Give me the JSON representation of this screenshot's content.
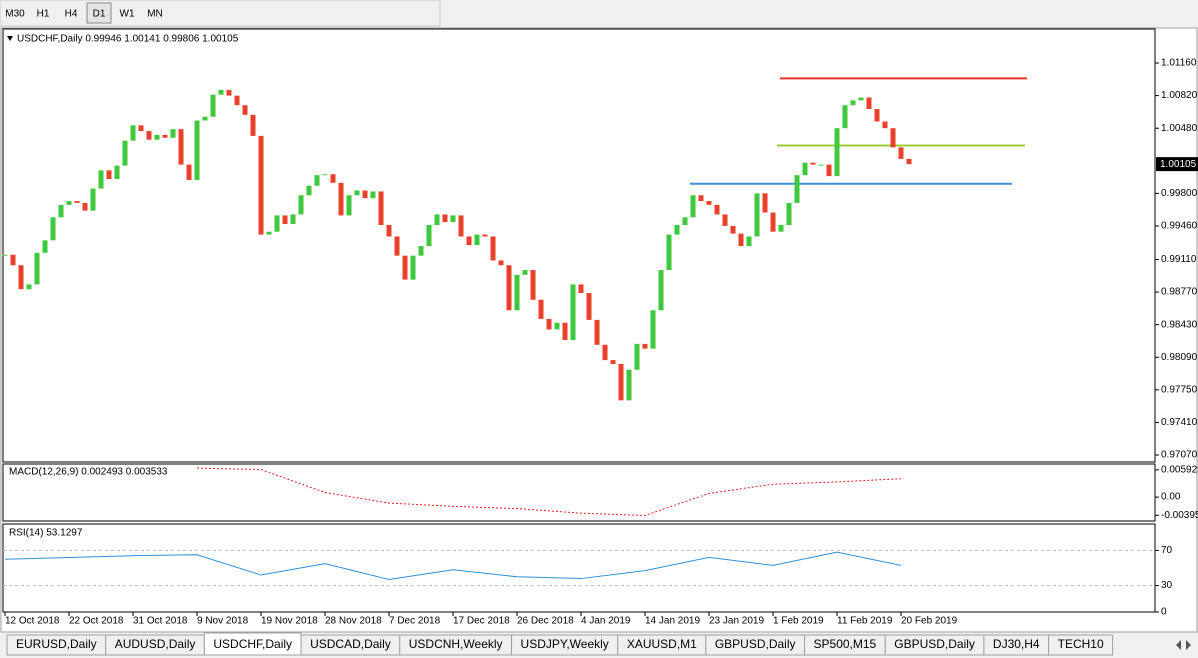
{
  "toolbar": {
    "buttons": [
      "M30",
      "H1",
      "H4",
      "D1",
      "W1",
      "MN"
    ],
    "active": 3
  },
  "chart_data": [
    {
      "type": "candlestick",
      "title": "USDCHF,Daily  0.99946 1.00141 0.99806 1.00105",
      "categories": [
        "12 Oct 2018",
        null,
        null,
        null,
        null,
        null,
        null,
        null,
        "22 Oct 2018",
        null,
        null,
        null,
        null,
        null,
        null,
        null,
        "31 Oct 2018",
        null,
        null,
        null,
        null,
        null,
        null,
        null,
        "9 Nov 2018",
        null,
        null,
        null,
        null,
        null,
        null,
        null,
        "19 Nov 2018",
        null,
        null,
        null,
        null,
        null,
        null,
        null,
        "28 Nov 2018",
        null,
        null,
        null,
        null,
        null,
        null,
        null,
        "7 Dec 2018",
        null,
        null,
        null,
        null,
        null,
        null,
        null,
        "17 Dec 2018",
        null,
        null,
        null,
        null,
        null,
        null,
        null,
        "26 Dec 2018",
        null,
        null,
        null,
        null,
        null,
        null,
        null,
        "4 Jan 2019",
        null,
        null,
        null,
        null,
        null,
        null,
        null,
        "14 Jan 2019",
        null,
        null,
        null,
        null,
        null,
        null,
        null,
        "23 Jan 2019",
        null,
        null,
        null,
        null,
        null,
        null,
        null,
        "1 Feb 2019",
        null,
        null,
        null,
        null,
        null,
        null,
        null,
        "11 Feb 2019",
        null,
        null,
        null,
        null,
        null,
        null,
        null,
        "20 Feb 2019",
        null
      ],
      "values": [
        0.9916,
        0.9905,
        0.988,
        0.9885,
        0.9918,
        0.9931,
        0.9955,
        0.9968,
        0.9972,
        0.997,
        0.9962,
        0.9985,
        1.0004,
        0.9995,
        1.0009,
        1.0035,
        1.0051,
        1.0045,
        1.0036,
        1.0041,
        1.0038,
        1.0047,
        1.001,
        0.9994,
        1.0056,
        1.006,
        1.0083,
        1.0088,
        1.0082,
        1.0072,
        1.0062,
        1.004,
        0.9937,
        0.994,
        0.9957,
        0.9948,
        0.9958,
        0.9978,
        0.9988,
        0.9999,
        1.0,
        0.9991,
        0.9957,
        0.9978,
        0.9983,
        0.9975,
        0.9982,
        0.9947,
        0.9935,
        0.9915,
        0.989,
        0.9915,
        0.9925,
        0.9947,
        0.9958,
        0.995,
        0.9957,
        0.9935,
        0.9926,
        0.9937,
        0.9935,
        0.991,
        0.9905,
        0.9858,
        0.9895,
        0.99,
        0.9869,
        0.9849,
        0.9838,
        0.9845,
        0.9827,
        0.9885,
        0.9876,
        0.9848,
        0.9822,
        0.9806,
        0.9802,
        0.9764,
        0.9796,
        0.9823,
        0.9818,
        0.9858,
        0.99,
        0.9937,
        0.9947,
        0.9955,
        0.9978,
        0.9972,
        0.9968,
        0.9958,
        0.9946,
        0.9938,
        0.9925,
        0.9935,
        0.998,
        0.996,
        0.994,
        0.9947,
        0.997,
        0.9999,
        1.0012,
        1.001,
        1.001,
        0.9998,
        1.0048,
        1.0072,
        1.0077,
        1.008,
        1.0068,
        1.0055,
        1.0048,
        1.0028,
        1.0016,
        1.00105
      ],
      "up_color": "#3ec83e",
      "down_color": "#e8402a",
      "ylim": [
        0.96997,
        1.01515
      ],
      "yticks": [
        {
          "value": 1.0116,
          "label": "1.01160"
        },
        {
          "value": 1.0082,
          "label": "1.00820"
        },
        {
          "value": 1.0048,
          "label": "1.00480"
        },
        {
          "value": 0.998,
          "label": "0.99800"
        },
        {
          "value": 0.9946,
          "label": "0.99460"
        },
        {
          "value": 0.9911,
          "label": "0.99110"
        },
        {
          "value": 0.9877,
          "label": "0.98770"
        },
        {
          "value": 0.9843,
          "label": "0.98430"
        },
        {
          "value": 0.9809,
          "label": "0.98090"
        },
        {
          "value": 0.9775,
          "label": "0.97750"
        },
        {
          "value": 0.9741,
          "label": "0.97410"
        },
        {
          "value": 0.9707,
          "label": "0.97070"
        }
      ],
      "last_price": {
        "value": 1.00105,
        "label": "1.00105"
      },
      "levels": [
        {
          "value": 1.01,
          "color": "#e8302a"
        },
        {
          "value": 1.003,
          "color": "#9acd32"
        },
        {
          "value": 0.999,
          "color": "#3d8fd8"
        }
      ]
    },
    {
      "type": "line",
      "title": "MACD(12,26,9) 0.002493 0.003533",
      "color": "#d42020",
      "dashed": true,
      "values": [
        null,
        null,
        null,
        0.0063,
        0.006,
        0.001,
        -0.0013,
        -0.002,
        -0.0025,
        -0.0035,
        -0.004,
        0.0008,
        0.0028,
        0.0033,
        0.004
      ],
      "ylim": [
        -0.0052,
        0.0072
      ],
      "yticks": [
        0.005925,
        {
          "value": 0,
          "label": "0.00"
        },
        -0.003951
      ]
    },
    {
      "type": "line",
      "title": "RSI(14) 53.1297",
      "color": "#2f8fd8",
      "dashed": false,
      "values": [
        60,
        62,
        64,
        65,
        42,
        55,
        37,
        48,
        40,
        38,
        47,
        62,
        53,
        68,
        53
      ],
      "ylim": [
        0,
        100
      ],
      "yticks": [
        0,
        30,
        70
      ]
    }
  ],
  "tabs": [
    "EURUSD,Daily",
    "AUDUSD,Daily",
    "USDCHF,Daily",
    "USDCAD,Daily",
    "USDCNH,Weekly",
    "USDJPY,Weekly",
    "XAUUSD,M1",
    "GBPUSD,Daily",
    "SP500,M15",
    "GBPUSD,Daily",
    "DJ30,H4",
    "TECH10"
  ],
  "active_tab": 2
}
